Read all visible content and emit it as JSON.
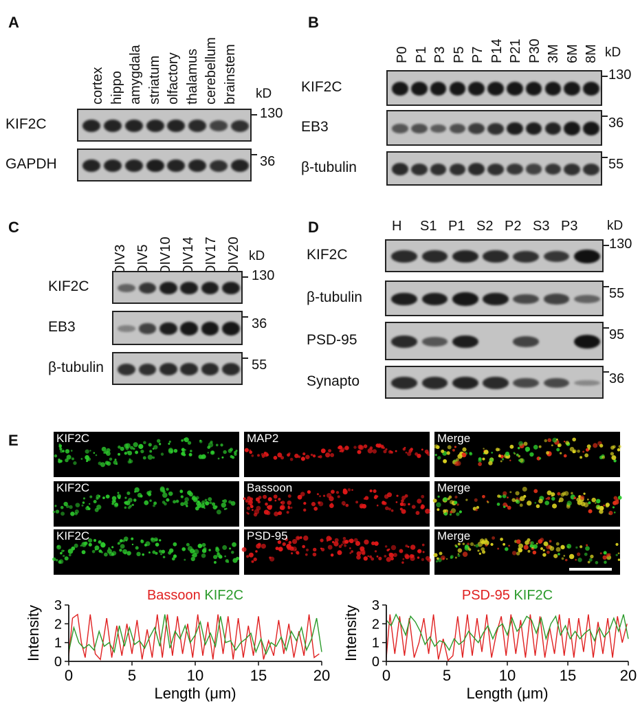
{
  "panels": {
    "A": {
      "label": "A",
      "lanes": [
        "cortex",
        "hippo",
        "amygdala",
        "striatum",
        "olfactory",
        "thalamus",
        "cerebellum",
        "brainstem"
      ],
      "kd": "kD",
      "rows": [
        {
          "name": "KIF2C",
          "mw": "130",
          "intensity": [
            0.85,
            0.85,
            0.85,
            0.85,
            0.85,
            0.8,
            0.6,
            0.75
          ]
        },
        {
          "name": "GAPDH",
          "mw": "36",
          "intensity": [
            0.85,
            0.85,
            0.85,
            0.9,
            0.85,
            0.85,
            0.75,
            0.85
          ]
        }
      ]
    },
    "B": {
      "label": "B",
      "lanes": [
        "P0",
        "P1",
        "P3",
        "P5",
        "P7",
        "P14",
        "P21",
        "P30",
        "3M",
        "6M",
        "8M"
      ],
      "kd": "kD",
      "rows": [
        {
          "name": "KIF2C",
          "mw": "130",
          "intensity": [
            0.95,
            0.95,
            0.95,
            0.95,
            0.95,
            0.95,
            0.95,
            0.95,
            0.95,
            0.95,
            0.95
          ]
        },
        {
          "name": "EB3",
          "mw": "36",
          "intensity": [
            0.45,
            0.5,
            0.4,
            0.5,
            0.65,
            0.75,
            0.9,
            0.9,
            0.85,
            0.95,
            0.95
          ]
        },
        {
          "name": "β-tubulin",
          "mw": "55",
          "intensity": [
            0.8,
            0.75,
            0.75,
            0.75,
            0.8,
            0.75,
            0.7,
            0.6,
            0.7,
            0.75,
            0.75
          ]
        }
      ]
    },
    "C": {
      "label": "C",
      "lanes": [
        "DIV3",
        "DIV5",
        "DIV10",
        "DIV14",
        "DIV17",
        "DIV20"
      ],
      "kd": "kD",
      "rows": [
        {
          "name": "KIF2C",
          "mw": "130",
          "intensity": [
            0.35,
            0.7,
            0.9,
            0.9,
            0.9,
            0.9
          ]
        },
        {
          "name": "EB3",
          "mw": "36",
          "intensity": [
            0.1,
            0.6,
            0.9,
            0.95,
            0.95,
            0.95
          ]
        },
        {
          "name": "β-tubulin",
          "mw": "55",
          "intensity": [
            0.75,
            0.75,
            0.8,
            0.8,
            0.8,
            0.8
          ]
        }
      ]
    },
    "D": {
      "label": "D",
      "lanes": [
        "H",
        "S1",
        "P1",
        "S2",
        "P2",
        "S3",
        "P3"
      ],
      "kd": "kD",
      "rows": [
        {
          "name": "KIF2C",
          "mw": "130",
          "intensity": [
            0.8,
            0.8,
            0.85,
            0.8,
            0.75,
            0.7,
            1.0
          ]
        },
        {
          "name": "β-tubulin",
          "mw": "55",
          "intensity": [
            0.9,
            0.9,
            0.95,
            0.9,
            0.55,
            0.6,
            0.35
          ]
        },
        {
          "name": "PSD-95",
          "mw": "95",
          "intensity": [
            0.8,
            0.45,
            0.9,
            0.0,
            0.6,
            0.0,
            1.0
          ]
        },
        {
          "name": "Synapto",
          "mw": "36",
          "intensity": [
            0.8,
            0.8,
            0.85,
            0.8,
            0.55,
            0.55,
            0.05
          ]
        }
      ]
    },
    "E": {
      "label": "E",
      "images": [
        [
          "KIF2C",
          "MAP2",
          "Merge"
        ],
        [
          "KIF2C",
          "Bassoon",
          "Merge"
        ],
        [
          "KIF2C",
          "PSD-95",
          "Merge"
        ]
      ]
    }
  },
  "chart_data": [
    {
      "type": "line",
      "title_parts": [
        "Bassoon",
        "KIF2C"
      ],
      "xlabel": "Length (μm)",
      "ylabel": "Intensity",
      "xlim": [
        0,
        20
      ],
      "ylim": [
        0,
        3
      ],
      "xticks": [
        "0",
        "5",
        "10",
        "15",
        "20"
      ],
      "yticks": [
        "0",
        "1",
        "2",
        "3"
      ],
      "series": [
        {
          "name": "Bassoon",
          "color": "#e02020",
          "x": [
            0,
            0.3,
            0.7,
            1.0,
            1.3,
            1.7,
            2.1,
            2.5,
            3.0,
            3.4,
            3.8,
            4.2,
            4.6,
            5.0,
            5.4,
            5.8,
            6.2,
            6.6,
            7.0,
            7.4,
            7.8,
            8.2,
            8.6,
            9.0,
            9.4,
            9.8,
            10.2,
            10.6,
            11.0,
            11.4,
            11.8,
            12.2,
            12.6,
            13.0,
            13.4,
            13.8,
            14.2,
            14.6,
            15.0,
            15.4,
            15.8,
            16.2,
            16.6,
            17.0,
            17.4,
            17.8,
            18.2,
            18.6,
            19.0,
            19.4,
            19.8
          ],
          "y": [
            0.3,
            2.3,
            2.5,
            1.0,
            0.2,
            2.5,
            0.4,
            0.1,
            2.3,
            0.2,
            1.9,
            0.3,
            2.0,
            0.4,
            2.2,
            0.1,
            1.7,
            0.2,
            2.5,
            0.2,
            2.5,
            0.3,
            2.4,
            0.4,
            2.0,
            0.2,
            2.5,
            0.3,
            2.1,
            0.1,
            2.5,
            0.4,
            2.4,
            0.1,
            2.3,
            0.2,
            1.9,
            0.3,
            2.4,
            0.1,
            1.1,
            0.3,
            2.2,
            0.4,
            2.0,
            0.2,
            1.6,
            0.3,
            2.5,
            0.2,
            0.4
          ]
        },
        {
          "name": "KIF2C",
          "color": "#2a9a2a",
          "x": [
            0,
            0.4,
            0.8,
            1.2,
            1.6,
            2.0,
            2.4,
            2.8,
            3.2,
            3.6,
            4.0,
            4.4,
            4.8,
            5.2,
            5.6,
            6.0,
            6.4,
            6.8,
            7.2,
            7.6,
            8.0,
            8.4,
            8.8,
            9.2,
            9.6,
            10.0,
            10.4,
            10.8,
            11.2,
            11.6,
            12.0,
            12.4,
            12.8,
            13.2,
            13.6,
            14.0,
            14.4,
            14.8,
            15.2,
            15.6,
            16.0,
            16.4,
            16.8,
            17.2,
            17.6,
            18.0,
            18.4,
            18.8,
            19.2,
            19.6,
            20.0
          ],
          "y": [
            0.5,
            1.8,
            1.0,
            0.7,
            0.9,
            0.6,
            1.6,
            0.8,
            1.0,
            0.5,
            1.9,
            0.8,
            1.8,
            0.9,
            1.1,
            0.7,
            1.3,
            1.8,
            0.8,
            2.5,
            0.7,
            1.6,
            1.2,
            1.9,
            1.0,
            1.4,
            2.1,
            0.9,
            1.5,
            0.8,
            2.4,
            1.0,
            1.1,
            0.6,
            1.0,
            1.2,
            1.5,
            0.5,
            1.2,
            0.4,
            1.0,
            0.8,
            1.3,
            0.6,
            1.6,
            1.1,
            1.8,
            0.6,
            1.2,
            2.3,
            0.5
          ]
        }
      ]
    },
    {
      "type": "line",
      "title_parts": [
        "PSD-95",
        "KIF2C"
      ],
      "xlabel": "Length (μm)",
      "ylabel": "Intensity",
      "xlim": [
        0,
        20
      ],
      "ylim": [
        0,
        3
      ],
      "xticks": [
        "0",
        "5",
        "10",
        "15",
        "20"
      ],
      "yticks": [
        "0",
        "1",
        "2",
        "3"
      ],
      "series": [
        {
          "name": "PSD-95",
          "color": "#e02020",
          "x": [
            0,
            0.3,
            0.7,
            1.1,
            1.5,
            1.9,
            2.3,
            2.7,
            3.1,
            3.5,
            3.9,
            4.3,
            4.7,
            5.1,
            5.5,
            5.9,
            6.3,
            6.7,
            7.1,
            7.5,
            7.9,
            8.3,
            8.7,
            9.1,
            9.5,
            9.9,
            10.3,
            10.7,
            11.1,
            11.5,
            11.9,
            12.3,
            12.7,
            13.1,
            13.5,
            13.9,
            14.3,
            14.7,
            15.1,
            15.5,
            15.9,
            16.3,
            16.7,
            17.1,
            17.5,
            17.9,
            18.3,
            18.7,
            19.1,
            19.5,
            19.9
          ],
          "y": [
            0.2,
            2.5,
            0.4,
            2.4,
            0.3,
            2.3,
            0.2,
            1.0,
            2.3,
            0.4,
            2.5,
            0.1,
            1.2,
            0.05,
            0.3,
            2.4,
            0.2,
            2.5,
            0.3,
            2.3,
            0.5,
            2.5,
            0.2,
            1.5,
            2.4,
            0.3,
            2.5,
            0.4,
            2.2,
            0.2,
            2.5,
            0.3,
            2.4,
            0.2,
            1.8,
            0.4,
            2.5,
            0.3,
            2.3,
            0.2,
            2.3,
            0.5,
            2.5,
            0.2,
            2.1,
            0.4,
            2.3,
            0.2,
            2.4,
            1.0,
            2.0
          ]
        },
        {
          "name": "KIF2C",
          "color": "#2a9a2a",
          "x": [
            0,
            0.4,
            0.8,
            1.2,
            1.6,
            2.0,
            2.4,
            2.8,
            3.2,
            3.6,
            4.0,
            4.4,
            4.8,
            5.2,
            5.6,
            6.0,
            6.4,
            6.8,
            7.2,
            7.6,
            8.0,
            8.4,
            8.8,
            9.2,
            9.6,
            10.0,
            10.4,
            10.8,
            11.2,
            11.6,
            12.0,
            12.4,
            12.8,
            13.2,
            13.6,
            14.0,
            14.4,
            14.8,
            15.2,
            15.6,
            16.0,
            16.4,
            16.8,
            17.2,
            17.6,
            18.0,
            18.4,
            18.8,
            19.2,
            19.6,
            20.0
          ],
          "y": [
            2.2,
            1.9,
            2.5,
            2.0,
            1.4,
            2.4,
            2.1,
            1.6,
            0.9,
            1.3,
            0.8,
            1.1,
            1.0,
            0.6,
            1.2,
            0.9,
            1.1,
            1.6,
            1.3,
            1.0,
            1.5,
            1.9,
            1.2,
            1.8,
            2.0,
            1.4,
            2.3,
            1.6,
            1.9,
            2.4,
            2.2,
            1.5,
            2.3,
            1.2,
            2.0,
            2.4,
            1.4,
            1.9,
            1.2,
            1.6,
            1.2,
            1.5,
            1.7,
            1.1,
            1.8,
            1.3,
            1.6,
            2.3,
            1.6,
            2.5,
            1.2
          ]
        }
      ]
    }
  ]
}
